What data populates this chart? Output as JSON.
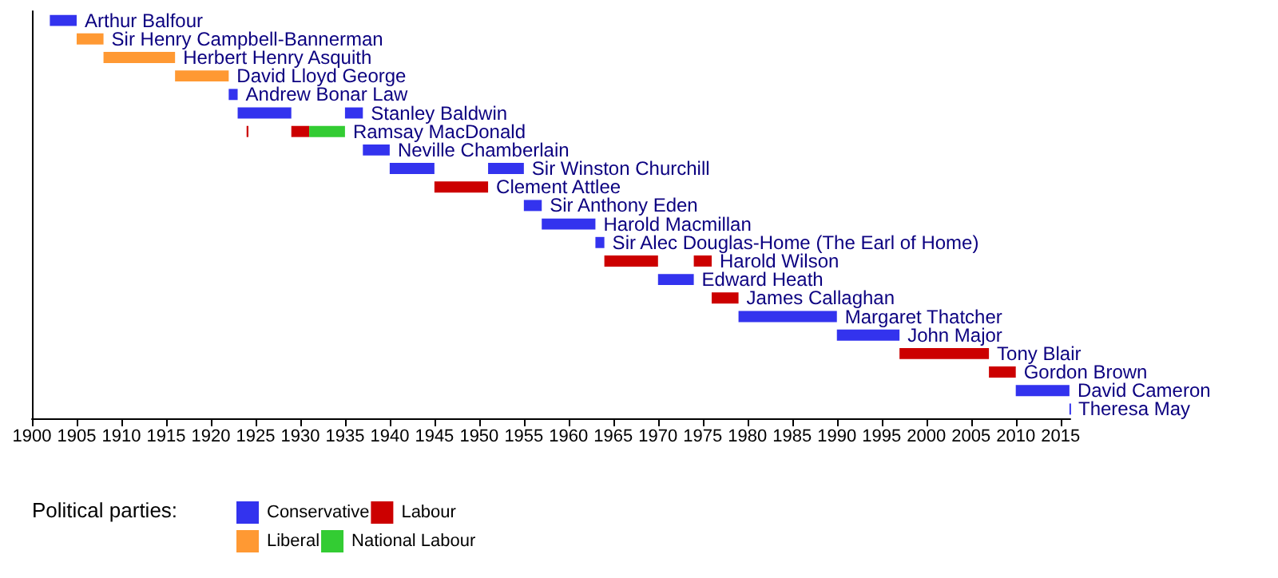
{
  "chart_data": {
    "type": "bar",
    "orientation": "horizontal",
    "categories": [
      "Arthur Balfour",
      "Sir Henry Campbell-Bannerman",
      "Herbert Henry Asquith",
      "David Lloyd George",
      "Andrew Bonar Law",
      "Stanley Baldwin",
      "Ramsay MacDonald",
      "Neville Chamberlain",
      "Sir Winston Churchill",
      "Clement Attlee",
      "Sir Anthony Eden",
      "Harold Macmillan",
      "Sir Alec Douglas-Home (The Earl of Home)",
      "Harold Wilson",
      "Edward Heath",
      "James Callaghan",
      "Margaret Thatcher",
      "John Major",
      "Tony Blair",
      "Gordon Brown",
      "David Cameron",
      "Theresa May"
    ],
    "series": [
      {
        "name": "Conservative",
        "color": "#3333ee",
        "values": [
          3,
          null,
          null,
          null,
          1,
          6,
          null,
          3,
          5,
          null,
          2,
          6,
          1,
          null,
          4,
          null,
          11,
          7,
          null,
          null,
          6,
          0.1
        ],
        "base": [
          1902,
          null,
          null,
          null,
          1922,
          1923,
          null,
          1937,
          1940,
          null,
          1955,
          1957,
          1963,
          null,
          1970,
          null,
          1979,
          1990,
          null,
          null,
          2010,
          2016
        ]
      },
      {
        "color": "#3333ee",
        "values": [
          null,
          null,
          null,
          null,
          null,
          2,
          null,
          null,
          4,
          null,
          null,
          null,
          null,
          null,
          null,
          null,
          null,
          null,
          null,
          null,
          null,
          null
        ],
        "base": [
          null,
          null,
          null,
          null,
          null,
          1935,
          null,
          null,
          1951,
          null,
          null,
          null,
          null,
          null,
          null,
          null,
          null,
          null,
          null,
          null,
          null,
          null
        ]
      },
      {
        "name": "Liberal",
        "color": "#ff9933",
        "values": [
          null,
          3,
          8,
          6,
          null,
          null,
          null,
          null,
          null,
          null,
          null,
          null,
          null,
          null,
          null,
          null,
          null,
          null,
          null,
          null,
          null,
          null
        ],
        "base": [
          null,
          1905,
          1908,
          1916,
          null,
          null,
          null,
          null,
          null,
          null,
          null,
          null,
          null,
          null,
          null,
          null,
          null,
          null,
          null,
          null,
          null,
          null
        ]
      },
      {
        "name": "Labour",
        "color": "#cc0000",
        "values": [
          null,
          null,
          null,
          null,
          null,
          null,
          0.2,
          null,
          null,
          6,
          null,
          null,
          null,
          6,
          null,
          3,
          null,
          null,
          10,
          3,
          null,
          null
        ],
        "base": [
          null,
          null,
          null,
          null,
          null,
          null,
          1924,
          null,
          null,
          1945,
          null,
          null,
          null,
          1964,
          null,
          1976,
          null,
          null,
          1997,
          2007,
          null,
          null
        ]
      },
      {
        "color": "#cc0000",
        "values": [
          null,
          null,
          null,
          null,
          null,
          null,
          2,
          null,
          null,
          null,
          null,
          null,
          null,
          2,
          null,
          null,
          null,
          null,
          null,
          null,
          null,
          null
        ],
        "base": [
          null,
          null,
          null,
          null,
          null,
          null,
          1929,
          null,
          null,
          null,
          null,
          null,
          null,
          1974,
          null,
          null,
          null,
          null,
          null,
          null,
          null,
          null
        ]
      },
      {
        "name": "National Labour",
        "color": "#33cc33",
        "values": [
          null,
          null,
          null,
          null,
          null,
          null,
          4,
          null,
          null,
          null,
          null,
          null,
          null,
          null,
          null,
          null,
          null,
          null,
          null,
          null,
          null,
          null
        ],
        "base": [
          null,
          null,
          null,
          null,
          null,
          null,
          1931,
          null,
          null,
          null,
          null,
          null,
          null,
          null,
          null,
          null,
          null,
          null,
          null,
          null,
          null,
          null
        ]
      }
    ],
    "xlim": [
      1900,
      2016.1
    ],
    "xticks": [
      1900,
      1905,
      1910,
      1915,
      1920,
      1925,
      1930,
      1935,
      1940,
      1945,
      1950,
      1955,
      1960,
      1965,
      1970,
      1975,
      1980,
      1985,
      1990,
      1995,
      2000,
      2005,
      2010,
      2015
    ],
    "tick_labels": "x",
    "grid": false,
    "legend": "bottom left",
    "legend_title": "Political parties:"
  }
}
